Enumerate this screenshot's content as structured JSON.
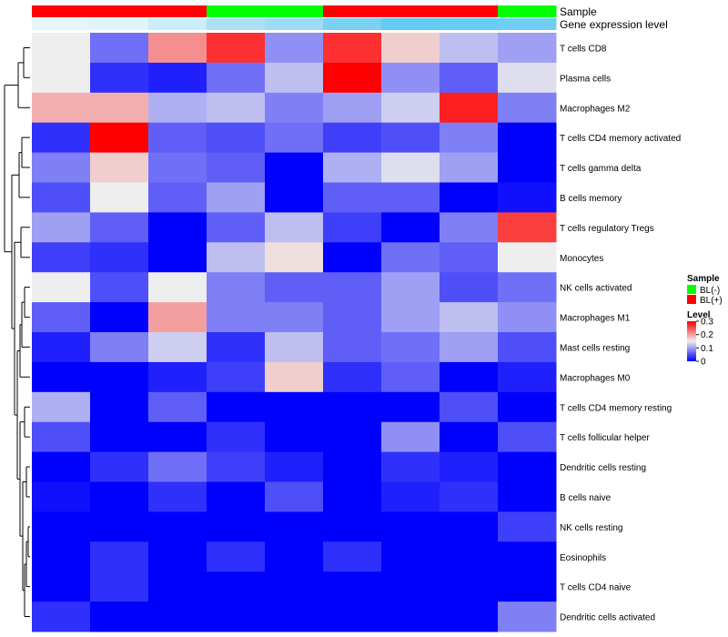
{
  "chart_data": {
    "type": "heatmap",
    "annotation_tracks": [
      {
        "name": "Sample",
        "values": [
          "BL(+)",
          "BL(+)",
          "BL(+)",
          "BL(-)",
          "BL(-)",
          "BL(+)",
          "BL(+)",
          "BL(+)",
          "BL(-)"
        ]
      },
      {
        "name": "Gene expression level",
        "values": [
          0.02,
          0.05,
          0.2,
          0.45,
          0.55,
          0.8,
          0.95,
          0.92,
          0.88
        ]
      }
    ],
    "rows": [
      "T cells CD8",
      "Plasma cells",
      "Macrophages M2",
      "T cells CD4 memory activated",
      "T cells gamma delta",
      "B cells memory",
      "T cells regulatory  Tregs",
      "Monocytes",
      "NK cells activated",
      "Macrophages M1",
      "Mast cells resting",
      "Macrophages M0",
      "T cells CD4 memory resting",
      "T cells follicular helper",
      "Dendritic cells resting",
      "B cells naive",
      "NK cells resting",
      "Eosinophils",
      "T cells CD4 naive",
      "Dendritic cells activated"
    ],
    "values": [
      [
        0.15,
        0.07,
        0.21,
        0.27,
        0.09,
        0.27,
        0.17,
        0.12,
        0.1
      ],
      [
        0.15,
        0.03,
        0.02,
        0.07,
        0.12,
        0.3,
        0.09,
        0.06,
        0.14
      ],
      [
        0.19,
        0.19,
        0.11,
        0.12,
        0.08,
        0.1,
        0.13,
        0.28,
        0.08
      ],
      [
        0.03,
        0.3,
        0.06,
        0.05,
        0.07,
        0.04,
        0.05,
        0.08,
        0.0
      ],
      [
        0.08,
        0.17,
        0.07,
        0.06,
        0.0,
        0.11,
        0.14,
        0.1,
        0.0
      ],
      [
        0.05,
        0.15,
        0.06,
        0.1,
        0.0,
        0.06,
        0.06,
        0.0,
        0.01
      ],
      [
        0.1,
        0.06,
        0.0,
        0.06,
        0.12,
        0.04,
        0.0,
        0.08,
        0.26
      ],
      [
        0.04,
        0.03,
        0.0,
        0.12,
        0.16,
        0.0,
        0.07,
        0.06,
        0.15
      ],
      [
        0.15,
        0.05,
        0.15,
        0.08,
        0.06,
        0.06,
        0.1,
        0.05,
        0.07
      ],
      [
        0.06,
        0.0,
        0.2,
        0.08,
        0.08,
        0.06,
        0.1,
        0.12,
        0.09
      ],
      [
        0.02,
        0.08,
        0.13,
        0.03,
        0.12,
        0.06,
        0.07,
        0.1,
        0.05
      ],
      [
        0.0,
        0.0,
        0.02,
        0.04,
        0.17,
        0.03,
        0.06,
        0.0,
        0.02
      ],
      [
        0.11,
        0.0,
        0.06,
        0.0,
        0.0,
        0.0,
        0.0,
        0.05,
        0.0
      ],
      [
        0.05,
        0.0,
        0.0,
        0.03,
        0.0,
        0.0,
        0.09,
        0.0,
        0.05
      ],
      [
        0.0,
        0.03,
        0.07,
        0.04,
        0.02,
        0.0,
        0.03,
        0.02,
        0.0
      ],
      [
        0.01,
        0.0,
        0.03,
        0.0,
        0.05,
        0.0,
        0.02,
        0.03,
        0.0
      ],
      [
        0.0,
        0.0,
        0.0,
        0.0,
        0.0,
        0.0,
        0.0,
        0.0,
        0.04
      ],
      [
        0.0,
        0.03,
        0.0,
        0.03,
        0.0,
        0.03,
        0.0,
        0.0,
        0.0
      ],
      [
        0.0,
        0.03,
        0.0,
        0.0,
        0.0,
        0.0,
        0.0,
        0.0,
        0.0
      ],
      [
        0.03,
        0.0,
        0.0,
        0.0,
        0.0,
        0.0,
        0.0,
        0.0,
        0.08
      ]
    ],
    "color_scale": {
      "min": 0,
      "mid": 0.15,
      "max": 0.3,
      "low_color": "#0000ff",
      "mid_color": "#eeeeee",
      "high_color": "#ff0000"
    },
    "legend": {
      "sample_title": "Sample",
      "sample_entries": [
        {
          "label": "BL(-)",
          "color": "#00ff00"
        },
        {
          "label": "BL(+)",
          "color": "#ff0000"
        }
      ],
      "level_title": "Level",
      "level_ticks": [
        "0.3",
        "0.2",
        "0.1",
        "0"
      ],
      "level_tick_values": [
        0.3,
        0.2,
        0.1,
        0
      ]
    },
    "annotation_color_low": "#e8f6fc",
    "annotation_color_high": "#5ec8f0"
  }
}
